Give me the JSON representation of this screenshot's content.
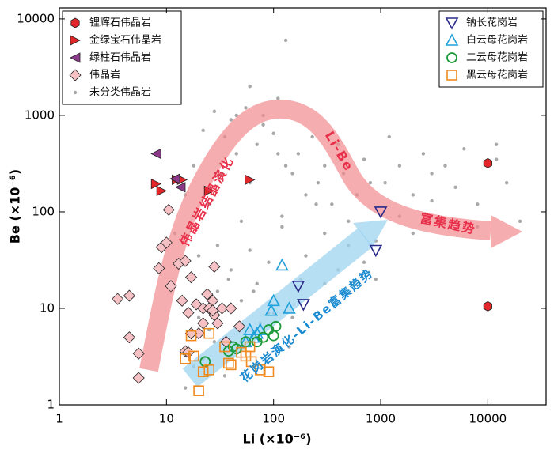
{
  "chart_data": {
    "type": "scatter",
    "x_label": "Li (×10⁻⁶)",
    "y_label": "Be (×10⁻⁶)",
    "log_x": true,
    "log_y": true,
    "xlim": [
      1,
      35000
    ],
    "ylim": [
      1,
      13000
    ],
    "xticks": [
      1,
      10,
      100,
      1000,
      10000
    ],
    "yticks": [
      1,
      10,
      100,
      1000,
      10000
    ],
    "annotations": [
      {
        "text": "伟晶岩结晶演化",
        "color": "#e8304a"
      },
      {
        "text": "Li-Be",
        "color": "#e8304a"
      },
      {
        "text": "富集趋势",
        "color": "#e8304a"
      },
      {
        "text": "花岗岩演化-Li-Be富集趋势",
        "color": "#1a8ad0"
      }
    ],
    "series": [
      {
        "name": "未分类伟晶岩",
        "color": "#a8a8a8",
        "marker": "dot",
        "legend_loc": "upper left",
        "x": [
          12,
          15,
          18,
          20,
          22,
          25,
          28,
          30,
          33,
          35,
          38,
          40,
          45,
          50,
          55,
          60,
          65,
          70,
          80,
          90,
          100,
          110,
          120,
          130,
          150,
          170,
          200,
          230,
          260,
          300,
          350,
          400,
          450,
          500,
          600,
          700,
          800,
          900,
          1200,
          1500,
          2000,
          2500,
          3000,
          4000,
          5000,
          6000,
          8000,
          12000,
          15000,
          20000,
          20,
          25,
          30,
          40,
          50,
          60,
          70,
          90,
          120,
          150,
          200,
          250,
          300,
          400,
          500,
          700,
          900,
          1100,
          1500,
          2000,
          3000,
          5000,
          8000,
          12000,
          15,
          18,
          22,
          28,
          35,
          45,
          55,
          75,
          100,
          140,
          180,
          300,
          45,
          60,
          80,
          110,
          130
        ],
        "y": [
          60,
          150,
          300,
          35,
          700,
          120,
          1100,
          45,
          250,
          600,
          20,
          900,
          400,
          80,
          1200,
          200,
          15,
          500,
          1000,
          30,
          650,
          1500,
          90,
          6000,
          250,
          400,
          150,
          600,
          200,
          300,
          120,
          500,
          250,
          80,
          150,
          350,
          200,
          50,
          600,
          300,
          150,
          400,
          250,
          300,
          180,
          450,
          120,
          350,
          200,
          80,
          8,
          6,
          15,
          25,
          12,
          40,
          18,
          9,
          70,
          8,
          35,
          120,
          60,
          25,
          45,
          30,
          20,
          200,
          90,
          60,
          130,
          80,
          70,
          500,
          1.5,
          2.5,
          3,
          4.5,
          2,
          3.5,
          5,
          7,
          9,
          4,
          20,
          18,
          1000,
          2000,
          800,
          400,
          300
        ]
      },
      {
        "name": "锂辉石伟晶岩",
        "color": "#e3262a",
        "marker": "hexagon",
        "legend_loc": "upper left",
        "x": [
          10000,
          10000
        ],
        "y": [
          320,
          10.5
        ]
      },
      {
        "name": "金绿宝石伟晶岩",
        "color": "#e3262a",
        "marker": "triangle-right",
        "legend_loc": "upper left",
        "x": [
          8,
          9,
          12.5,
          14,
          25,
          60
        ],
        "y": [
          195,
          165,
          215,
          215,
          165,
          215
        ]
      },
      {
        "name": "绿柱石伟晶岩",
        "color": "#8b3a8a",
        "marker": "triangle-left",
        "legend_loc": "upper left",
        "x": [
          8,
          12,
          13.5
        ],
        "y": [
          400,
          220,
          180
        ]
      },
      {
        "name": "伟晶岩",
        "color": "#f6c1c5",
        "marker": "diamond",
        "legend_loc": "upper left",
        "x": [
          4.5,
          3.5,
          4.5,
          5.5,
          5.5,
          10.5,
          9,
          10,
          8.5,
          13,
          11,
          17,
          14,
          16,
          19,
          22,
          27,
          25,
          28,
          22,
          30,
          33,
          20,
          15,
          17,
          36,
          28,
          27,
          48,
          15,
          40,
          24,
          16
        ],
        "y": [
          13.5,
          12.5,
          5,
          3.4,
          1.9,
          105,
          43,
          48,
          26,
          29,
          17,
          21,
          12,
          9,
          11,
          10,
          12,
          10,
          8.5,
          7,
          7,
          10,
          5.5,
          3.6,
          5.5,
          4.5,
          27,
          9.5,
          6.5,
          31,
          10,
          14,
          3.5
        ]
      },
      {
        "name": "钠长花岗岩",
        "color": "#2a2a8a",
        "marker": "triangle-down",
        "legend_loc": "upper right",
        "x": [
          1000,
          900,
          190,
          170
        ],
        "y": [
          100,
          40,
          11,
          17
        ]
      },
      {
        "name": "白云母花岗岩",
        "color": "#1ea0d8",
        "marker": "triangle-up",
        "legend_loc": "upper right",
        "x": [
          120,
          100,
          95,
          140,
          60,
          70,
          75,
          55,
          65
        ],
        "y": [
          28,
          12,
          9.5,
          10,
          6,
          5.5,
          6,
          4.5,
          5
        ]
      },
      {
        "name": "二云母花岗岩",
        "color": "#1a9a3a",
        "marker": "circle",
        "legend_loc": "upper right",
        "x": [
          23,
          38,
          45,
          55,
          70,
          80,
          100,
          105,
          90,
          42
        ],
        "y": [
          2.8,
          3.6,
          3.8,
          4.5,
          4.5,
          5,
          5.2,
          6.5,
          6,
          4
        ]
      },
      {
        "name": "黑云母花岗岩",
        "color": "#f08a1e",
        "marker": "square",
        "legend_loc": "upper right",
        "x": [
          20,
          22,
          25,
          18,
          17,
          25,
          35,
          40,
          38,
          60,
          50,
          55,
          75,
          90,
          15,
          62
        ],
        "y": [
          1.4,
          2.2,
          2.3,
          3.2,
          5.2,
          5.5,
          4,
          2.6,
          2.7,
          4,
          3.5,
          3.2,
          2.3,
          2.2,
          3,
          2.8
        ]
      }
    ]
  }
}
